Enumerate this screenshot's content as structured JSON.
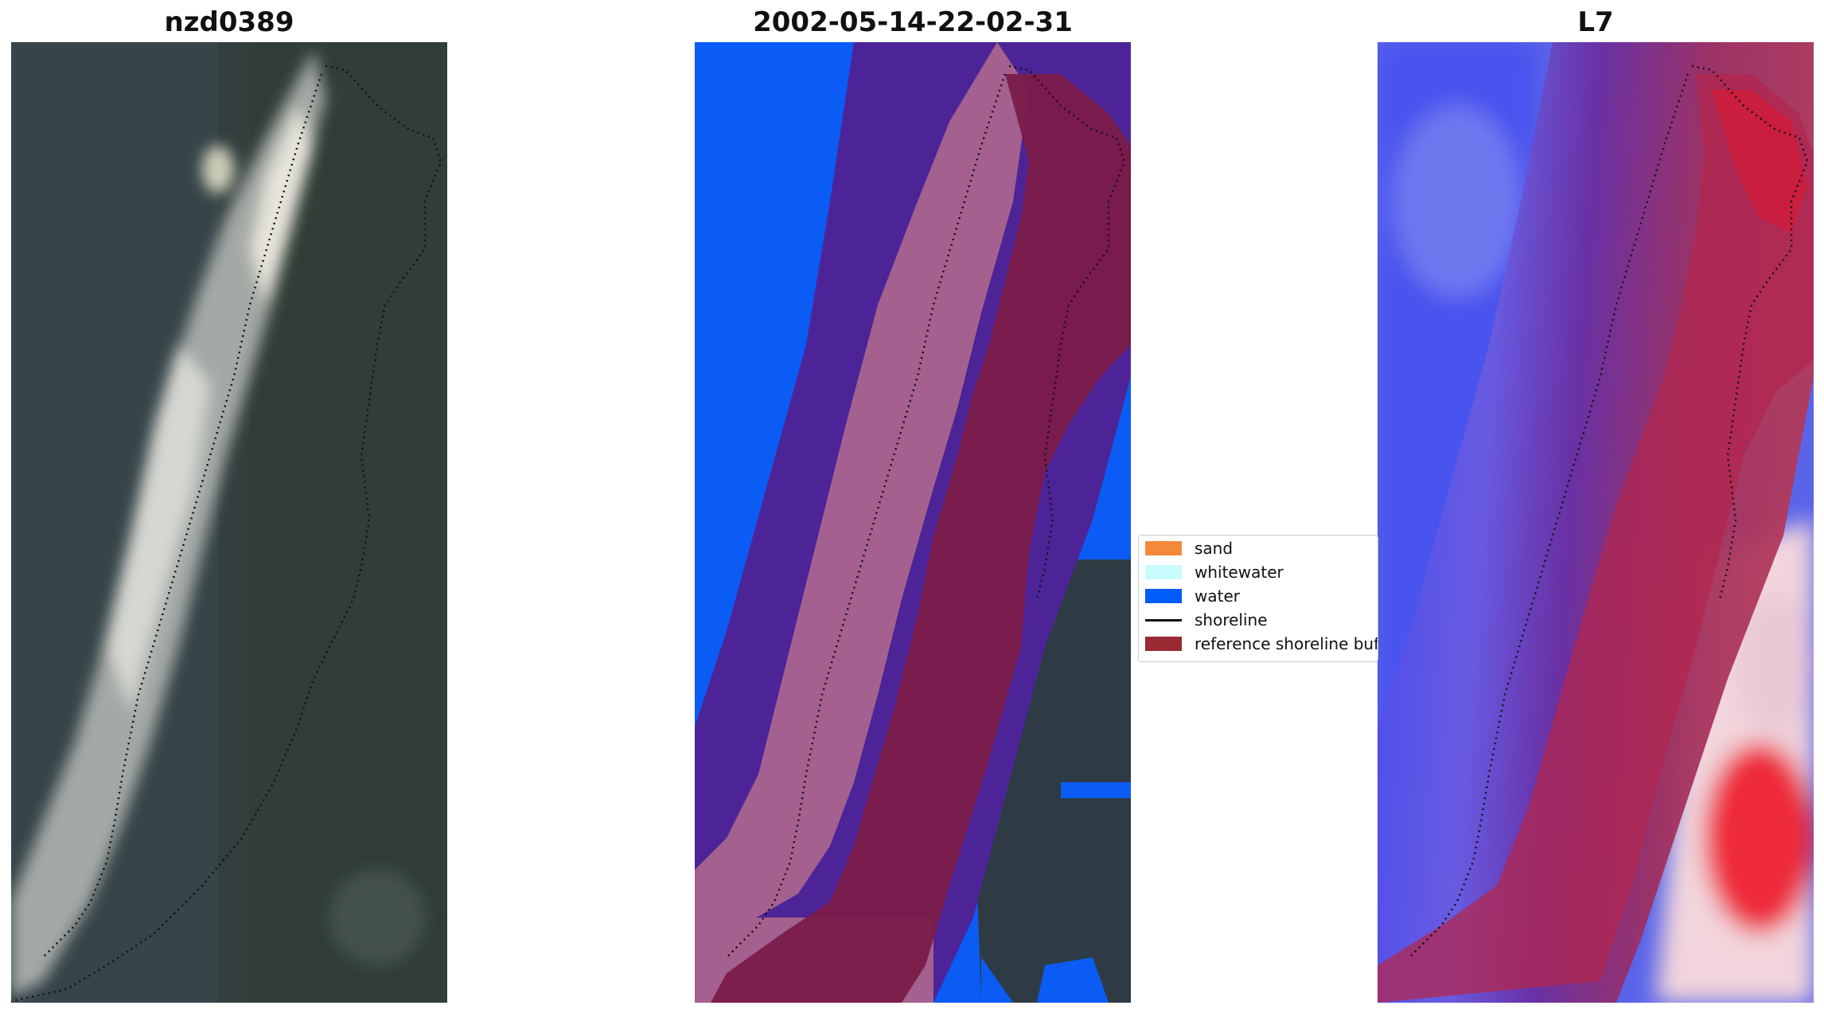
{
  "panels": [
    {
      "title": "nzd0389"
    },
    {
      "title": "2002-05-14-22-02-31"
    },
    {
      "title": "L7"
    }
  ],
  "legend": {
    "items": [
      {
        "label": "sand",
        "color": "#f4893a",
        "type": "patch"
      },
      {
        "label": "whitewater",
        "color": "#c8fcfc",
        "type": "patch"
      },
      {
        "label": "water",
        "color": "#005cf8",
        "type": "patch"
      },
      {
        "label": "shoreline",
        "color": "#111111",
        "type": "line"
      },
      {
        "label": "reference shoreline buffer",
        "color": "#9b2a34",
        "type": "patch"
      }
    ]
  },
  "colors": {
    "water_class": "#0a5cf5",
    "sand_overlay": "#a4608f",
    "buffer_overlay": "#7b1b49",
    "purple_overlay": "#4d2497",
    "ndwi_blue": "#3338e8",
    "ndwi_red": "#e81a2a"
  }
}
